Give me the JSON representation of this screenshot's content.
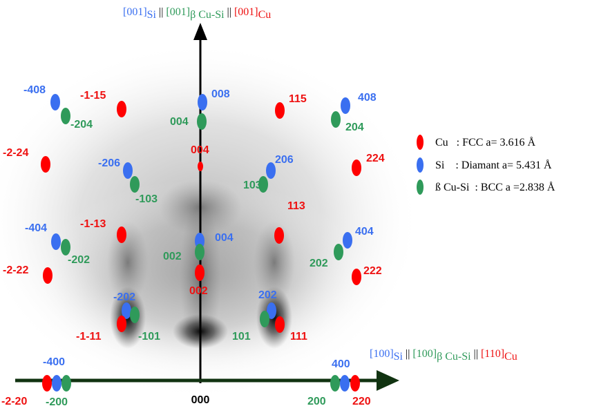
{
  "colors": {
    "cu": "#ff0000",
    "si": "#3a6ff0",
    "bcc": "#2f9a5a",
    "axis": "#113311",
    "text_si": "#3a6ff0",
    "text_bcc": "#2f9a5a",
    "text_cu": "#ee1111"
  },
  "top_axis_label": {
    "si_main": "[001]",
    "si_sub": "Si",
    "sep1": " || ",
    "bcc_main": "[001]",
    "bcc_sub": "β Cu-Si",
    "sep2": " || ",
    "cu_main": "[001]",
    "cu_sub": "Cu"
  },
  "right_axis_label": {
    "si_main": "[100]",
    "si_sub": "Si",
    "sep1": " || ",
    "bcc_main": "[100]",
    "bcc_sub": "β Cu-Si",
    "sep2": " || ",
    "cu_main": "[110]",
    "cu_sub": "Cu"
  },
  "origin_label": "000",
  "legend": [
    {
      "phase": "cu",
      "text": "Cu   : FCC a= 3.616 Å"
    },
    {
      "phase": "si",
      "text": "Si    : Diamant a= 5.431 Å"
    },
    {
      "phase": "bcc",
      "text": "ß Cu-Si  : BCC a =2.838 Å"
    }
  ],
  "spot_labels": {
    "cu": [
      "-1-15",
      "115",
      "004",
      "-2-24",
      "224",
      "-1-13",
      "113",
      "002",
      "-2-22",
      "222",
      "-1-11",
      "111",
      "-2-20",
      "220"
    ],
    "si": [
      "-408",
      "008",
      "408",
      "-206",
      "206",
      "-404",
      "004",
      "404",
      "-202",
      "202",
      "-400",
      "400"
    ],
    "bcc": [
      "-204",
      "004",
      "204",
      "-103",
      "103",
      "-202",
      "002",
      "202",
      "-101",
      "101",
      "-200",
      "200"
    ]
  }
}
